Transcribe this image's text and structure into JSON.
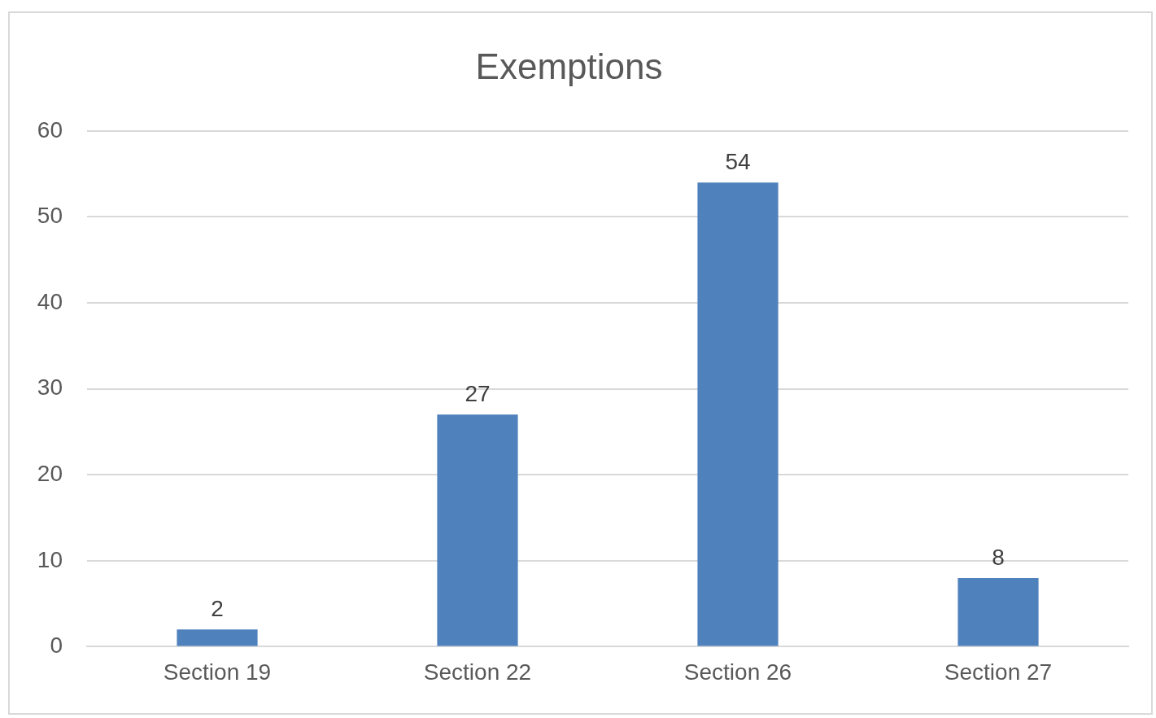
{
  "chart_data": {
    "type": "bar",
    "title": "Exemptions",
    "categories": [
      "Section 19",
      "Section 22",
      "Section 26",
      "Section 27"
    ],
    "values": [
      2,
      27,
      54,
      8
    ],
    "color": "#4f81bd",
    "ylim": [
      0,
      60
    ],
    "yticks": [
      0,
      10,
      20,
      30,
      40,
      50,
      60
    ],
    "grid": "y",
    "data_labels": true
  }
}
